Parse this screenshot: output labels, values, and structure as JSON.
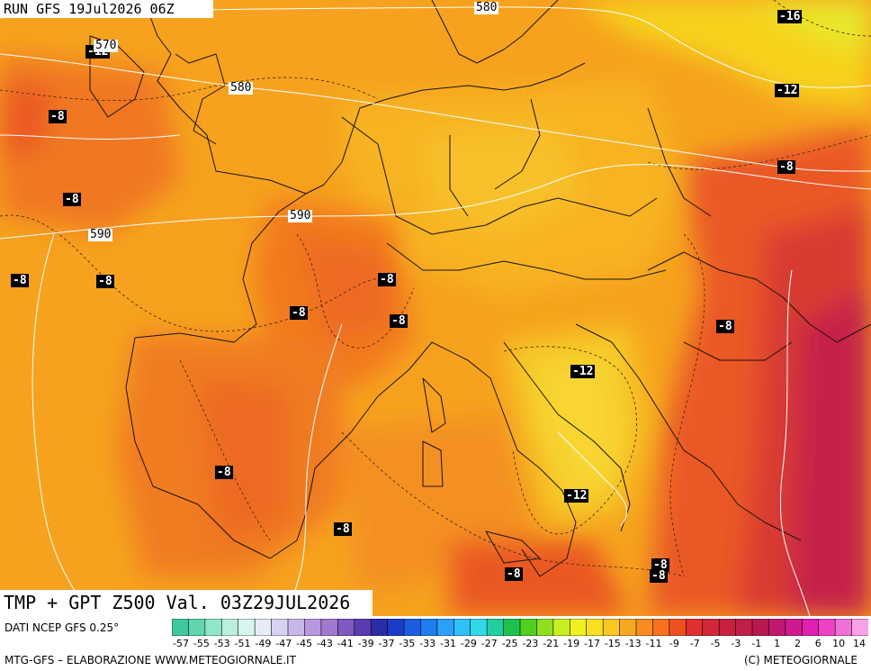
{
  "run_label": "RUN GFS 19Jul2026 06Z",
  "title": "TMP + GPT Z500 Val. 03Z29JUL2026",
  "footer": {
    "source": "DATI NCEP GFS 0.25°",
    "credit": "MTG-GFS – ELABORAZIONE WWW.METEOGIORNALE.IT",
    "copyright": "(C) METEOGIORNALE"
  },
  "temperature_labels": [
    "-12",
    "-8",
    "-16",
    "-12",
    "-8",
    "-8",
    "-8",
    "-8",
    "-8",
    "-8",
    "-8",
    "-8",
    "-8",
    "-12",
    "-8",
    "-12",
    "-8",
    "-8",
    "-8",
    "-8"
  ],
  "geopotential_labels": [
    "580",
    "570",
    "580",
    "590",
    "590"
  ],
  "scale": {
    "ticks": [
      "-57",
      "-55",
      "-53",
      "-51",
      "-49",
      "-47",
      "-45",
      "-43",
      "-41",
      "-39",
      "-37",
      "-35",
      "-33",
      "-31",
      "-29",
      "-27",
      "-25",
      "-23",
      "-21",
      "-19",
      "-17",
      "-15",
      "-13",
      "-11",
      "-9",
      "-7",
      "-5",
      "-3",
      "-1",
      "1",
      "2",
      "6",
      "10",
      "14"
    ],
    "colors": [
      "#3fc8a0",
      "#5fd6b0",
      "#8fe6c8",
      "#b8f0dc",
      "#d8f4ee",
      "#e8ecf8",
      "#d8d0f0",
      "#c8b8e8",
      "#b898e0",
      "#a078d0",
      "#8058c0",
      "#5a3cb0",
      "#2c2ca8",
      "#1c3cc8",
      "#1c5ce0",
      "#1c7ef0",
      "#2ca0f8",
      "#30c0f8",
      "#30d8e8",
      "#20d0a0",
      "#20c050",
      "#50d020",
      "#90e020",
      "#c8f020",
      "#f0f020",
      "#f8e020",
      "#f8c820",
      "#f8a820",
      "#f88c20",
      "#f87020",
      "#f05020",
      "#e03030",
      "#d02838",
      "#c82040",
      "#c02048",
      "#b81850",
      "#c01870",
      "#d01890",
      "#e020b0",
      "#f040c8",
      "#f070d8",
      "#f8a0e8"
    ]
  }
}
